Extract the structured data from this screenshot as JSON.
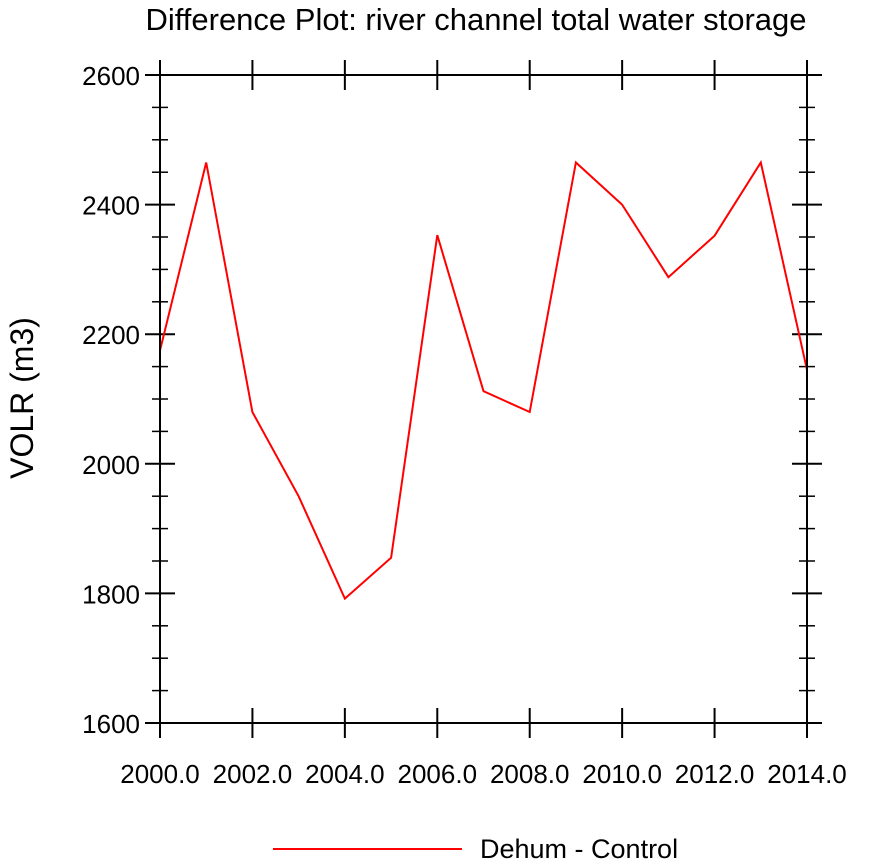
{
  "chart_data": {
    "type": "line",
    "title": "Difference Plot: river channel total water storage",
    "xlabel": "",
    "ylabel": "VOLR  (m3)",
    "xlim": [
      2000,
      2014
    ],
    "ylim": [
      1600,
      2600
    ],
    "x_ticks": [
      2000,
      2002,
      2004,
      2006,
      2008,
      2010,
      2012,
      2014
    ],
    "x_tick_labels": [
      "2000.0",
      "2002.0",
      "2004.0",
      "2006.0",
      "2008.0",
      "2010.0",
      "2012.0",
      "2014.0"
    ],
    "y_ticks": [
      1600,
      1800,
      2000,
      2200,
      2400,
      2600
    ],
    "y_tick_labels": [
      "1600",
      "1800",
      "2000",
      "2200",
      "2400",
      "2600"
    ],
    "grid": false,
    "legend_position": "bottom-center",
    "series": [
      {
        "name": "Dehum - Control",
        "color": "#ff0000",
        "x": [
          2000,
          2001,
          2002,
          2003,
          2004,
          2005,
          2006,
          2007,
          2008,
          2009,
          2010,
          2011,
          2012,
          2013,
          2014
        ],
        "y": [
          2175,
          2465,
          2080,
          1950,
          1792,
          1855,
          2353,
          2112,
          2080,
          2465,
          2400,
          2288,
          2352,
          2465,
          2145
        ]
      }
    ]
  }
}
